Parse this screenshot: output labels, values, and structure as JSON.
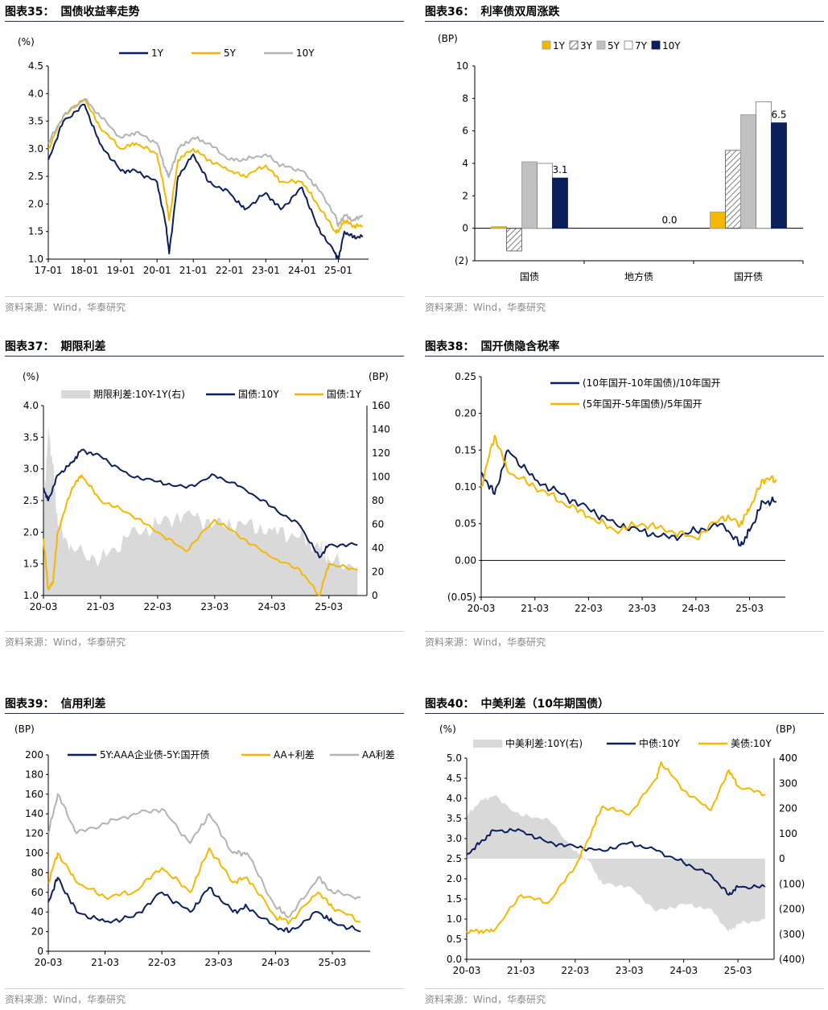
{
  "colors": {
    "navy": "#0b1f5c",
    "gold": "#f5b800",
    "gray": "#b3b3b3",
    "area": "#d9d9d9",
    "title_rule": "#1f2d5a"
  },
  "panels": [
    {
      "title_num": "图表35：",
      "title_text": "国债收益率走势",
      "source": "资料来源：Wind，华泰研究",
      "chart_data": {
        "type": "line",
        "unit": "(%)",
        "x_ticks": [
          "17-01",
          "18-01",
          "19-01",
          "20-01",
          "21-01",
          "22-01",
          "23-01",
          "24-01",
          "25-01"
        ],
        "ylim": [
          1.0,
          4.5
        ],
        "y_ticks": [
          "4.5",
          "4.0",
          "3.5",
          "3.0",
          "2.5",
          "2.0",
          "1.5",
          "1.0"
        ],
        "legend": [
          "1Y",
          "5Y",
          "10Y"
        ],
        "legend_position": "top",
        "series": [
          {
            "name": "1Y",
            "color": "navy",
            "x": [
              "17-01",
              "17-06",
              "18-01",
              "18-06",
              "19-01",
              "19-06",
              "20-01",
              "20-04",
              "20-05",
              "20-08",
              "21-01",
              "21-06",
              "22-01",
              "22-06",
              "23-01",
              "23-06",
              "24-01",
              "24-06",
              "24-12",
              "25-01",
              "25-03",
              "25-06",
              "25-09"
            ],
            "values": [
              2.8,
              3.5,
              3.8,
              3.1,
              2.6,
              2.6,
              2.4,
              1.6,
              1.1,
              2.5,
              2.9,
              2.4,
              2.2,
              1.9,
              2.2,
              1.9,
              2.3,
              1.6,
              1.1,
              1.0,
              1.5,
              1.4,
              1.4
            ]
          },
          {
            "name": "5Y",
            "color": "gold",
            "x": [
              "17-01",
              "17-06",
              "18-01",
              "18-06",
              "19-01",
              "19-06",
              "20-01",
              "20-04",
              "20-05",
              "20-08",
              "21-01",
              "21-06",
              "22-01",
              "22-06",
              "23-01",
              "23-06",
              "24-01",
              "24-06",
              "24-12",
              "25-01",
              "25-03",
              "25-06",
              "25-09"
            ],
            "values": [
              3.0,
              3.6,
              3.9,
              3.4,
              3.0,
              3.1,
              2.9,
              2.1,
              1.7,
              2.8,
              3.0,
              2.8,
              2.6,
              2.5,
              2.7,
              2.4,
              2.4,
              2.0,
              1.5,
              1.5,
              1.7,
              1.6,
              1.6
            ]
          },
          {
            "name": "10Y",
            "color": "gray",
            "x": [
              "17-01",
              "17-06",
              "18-01",
              "18-06",
              "19-01",
              "19-06",
              "20-01",
              "20-04",
              "20-05",
              "20-08",
              "21-01",
              "21-06",
              "22-01",
              "22-06",
              "23-01",
              "23-06",
              "24-01",
              "24-06",
              "24-12",
              "25-01",
              "25-03",
              "25-06",
              "25-09"
            ],
            "values": [
              3.1,
              3.6,
              3.9,
              3.6,
              3.2,
              3.3,
              3.1,
              2.6,
              2.5,
              3.0,
              3.2,
              3.1,
              2.8,
              2.8,
              2.9,
              2.7,
              2.6,
              2.3,
              1.8,
              1.6,
              1.8,
              1.7,
              1.8
            ]
          }
        ]
      }
    },
    {
      "title_num": "图表36：",
      "title_text": "利率债双周涨跌",
      "source": "资料来源：Wind，华泰研究",
      "chart_data": {
        "type": "bar",
        "unit": "(BP)",
        "categories": [
          "国债",
          "地方债",
          "国开债"
        ],
        "ylim": [
          -2,
          10
        ],
        "y_ticks": [
          "10",
          "8",
          "6",
          "4",
          "2",
          "0",
          "(2)"
        ],
        "legend": [
          "1Y",
          "3Y",
          "5Y",
          "7Y",
          "10Y"
        ],
        "legend_position": "top",
        "series": [
          {
            "name": "1Y",
            "values": [
              0.1,
              0.0,
              1.0
            ]
          },
          {
            "name": "3Y",
            "values": [
              -1.4,
              0.0,
              4.8
            ]
          },
          {
            "name": "5Y",
            "values": [
              4.1,
              0.0,
              7.0
            ]
          },
          {
            "name": "7Y",
            "values": [
              4.0,
              0.0,
              7.8
            ]
          },
          {
            "name": "10Y",
            "values": [
              3.1,
              0.0,
              6.5
            ]
          }
        ],
        "data_labels": [
          "3.1",
          "0.0",
          "6.5"
        ]
      }
    },
    {
      "title_num": "图表37：",
      "title_text": "期限利差",
      "source": "资料来源：Wind，华泰研究",
      "chart_data": {
        "type": "line",
        "unit_left": "(%)",
        "unit_right": "(BP)",
        "x_ticks": [
          "20-03",
          "21-03",
          "22-03",
          "23-03",
          "24-03",
          "25-03"
        ],
        "ylim": [
          1.0,
          4.0
        ],
        "y_ticks": [
          "4.0",
          "3.5",
          "3.0",
          "2.5",
          "2.0",
          "1.5",
          "1.0"
        ],
        "y2lim": [
          0,
          160
        ],
        "y2_ticks": [
          "160",
          "140",
          "120",
          "100",
          "80",
          "60",
          "40",
          "20",
          "0"
        ],
        "legend": [
          "期限利差:10Y-1Y(右)",
          "国债:10Y",
          "国债:1Y"
        ],
        "legend_position": "top",
        "area": {
          "name": "期限利差:10Y-1Y(右)",
          "x": [
            "20-03",
            "20-04",
            "20-05",
            "20-06",
            "20-09",
            "21-03",
            "21-09",
            "22-03",
            "22-09",
            "23-03",
            "23-09",
            "24-03",
            "24-09",
            "25-01",
            "25-03",
            "25-09"
          ],
          "values": [
            70,
            140,
            110,
            60,
            40,
            30,
            50,
            60,
            70,
            60,
            60,
            55,
            50,
            40,
            30,
            25
          ]
        },
        "series": [
          {
            "name": "国债:10Y",
            "color": "navy",
            "x": [
              "20-03",
              "20-04",
              "20-06",
              "20-09",
              "20-11",
              "21-03",
              "21-09",
              "22-03",
              "22-09",
              "23-03",
              "23-09",
              "24-03",
              "24-09",
              "25-01",
              "25-03",
              "25-09"
            ],
            "values": [
              2.7,
              2.5,
              2.9,
              3.1,
              3.3,
              3.2,
              2.9,
              2.8,
              2.7,
              2.9,
              2.7,
              2.4,
              2.1,
              1.6,
              1.8,
              1.8
            ]
          },
          {
            "name": "国债:1Y",
            "color": "gold",
            "x": [
              "20-03",
              "20-04",
              "20-05",
              "20-06",
              "20-09",
              "20-11",
              "21-03",
              "21-09",
              "22-03",
              "22-09",
              "23-03",
              "23-09",
              "24-03",
              "24-09",
              "25-01",
              "25-03",
              "25-09"
            ],
            "values": [
              1.9,
              1.1,
              1.2,
              2.0,
              2.7,
              2.9,
              2.5,
              2.3,
              2.0,
              1.7,
              2.2,
              1.9,
              1.6,
              1.4,
              1.0,
              1.5,
              1.4
            ]
          }
        ]
      }
    },
    {
      "title_num": "图表38：",
      "title_text": "国开债隐含税率",
      "source": "资料来源：Wind，华泰研究",
      "chart_data": {
        "type": "line",
        "x_ticks": [
          "20-03",
          "21-03",
          "22-03",
          "23-03",
          "24-03",
          "25-03"
        ],
        "ylim": [
          -0.05,
          0.25
        ],
        "y_ticks": [
          "0.25",
          "0.20",
          "0.15",
          "0.10",
          "0.05",
          "0.00",
          "(0.05)"
        ],
        "legend": [
          "(10年国开-10年国债)/10年国开",
          "(5年国开-5年国债)/5年国开"
        ],
        "legend_position": "top",
        "series": [
          {
            "name": "(10年国开-10年国债)/10年国开",
            "color": "navy",
            "x": [
              "20-03",
              "20-06",
              "20-09",
              "21-03",
              "21-09",
              "22-03",
              "22-09",
              "23-03",
              "23-09",
              "24-03",
              "24-09",
              "25-01",
              "25-03",
              "25-06",
              "25-09"
            ],
            "values": [
              0.12,
              0.09,
              0.15,
              0.11,
              0.09,
              0.07,
              0.05,
              0.04,
              0.03,
              0.04,
              0.05,
              0.02,
              0.04,
              0.08,
              0.08
            ]
          },
          {
            "name": "(5年国开-5年国债)/5年国开",
            "color": "gold",
            "x": [
              "20-03",
              "20-06",
              "20-09",
              "21-03",
              "21-09",
              "22-03",
              "22-09",
              "23-03",
              "23-09",
              "24-03",
              "24-09",
              "25-01",
              "25-03",
              "25-06",
              "25-09"
            ],
            "values": [
              0.1,
              0.17,
              0.12,
              0.1,
              0.08,
              0.06,
              0.04,
              0.05,
              0.04,
              0.03,
              0.06,
              0.05,
              0.07,
              0.11,
              0.11
            ]
          }
        ]
      }
    },
    {
      "title_num": "图表39：",
      "title_text": "信用利差",
      "source": "资料来源：Wind，华泰研究",
      "chart_data": {
        "type": "line",
        "unit": "(BP)",
        "x_ticks": [
          "20-03",
          "21-03",
          "22-03",
          "23-03",
          "24-03",
          "25-03"
        ],
        "ylim": [
          0,
          200
        ],
        "y_ticks": [
          "200",
          "180",
          "160",
          "140",
          "120",
          "100",
          "80",
          "60",
          "40",
          "20",
          "0"
        ],
        "legend": [
          "5Y:AAA企业债-5Y:国开债",
          "AA+利差",
          "AA利差"
        ],
        "legend_position": "top",
        "series": [
          {
            "name": "5Y:AAA企业债-5Y:国开债",
            "color": "navy",
            "x": [
              "20-03",
              "20-05",
              "20-09",
              "21-03",
              "21-09",
              "22-03",
              "22-09",
              "23-01",
              "23-06",
              "23-09",
              "24-03",
              "24-06",
              "24-12",
              "25-03",
              "25-09"
            ],
            "values": [
              50,
              75,
              40,
              30,
              35,
              60,
              40,
              65,
              40,
              45,
              25,
              20,
              40,
              30,
              20
            ]
          },
          {
            "name": "AA+利差",
            "color": "gold",
            "x": [
              "20-03",
              "20-05",
              "20-09",
              "21-03",
              "21-09",
              "22-03",
              "22-09",
              "23-01",
              "23-06",
              "23-09",
              "24-03",
              "24-06",
              "24-12",
              "25-03",
              "25-09"
            ],
            "values": [
              70,
              100,
              70,
              55,
              60,
              85,
              60,
              105,
              70,
              75,
              35,
              30,
              60,
              45,
              30
            ]
          },
          {
            "name": "AA利差",
            "color": "gray",
            "x": [
              "20-03",
              "20-05",
              "20-09",
              "21-03",
              "21-09",
              "22-03",
              "22-09",
              "23-01",
              "23-06",
              "23-09",
              "24-03",
              "24-06",
              "24-12",
              "25-03",
              "25-09"
            ],
            "values": [
              120,
              160,
              120,
              130,
              140,
              145,
              110,
              140,
              100,
              100,
              45,
              35,
              75,
              60,
              55
            ]
          }
        ]
      }
    },
    {
      "title_num": "图表40：",
      "title_text": "中美利差（10年期国债）",
      "source": "资料来源：Wind，华泰研究",
      "chart_data": {
        "type": "line",
        "unit_left": "(%)",
        "unit_right": "(BP)",
        "x_ticks": [
          "20-03",
          "21-03",
          "22-03",
          "23-03",
          "24-03",
          "25-03"
        ],
        "ylim": [
          0.0,
          5.0
        ],
        "y_ticks": [
          "5.0",
          "4.5",
          "4.0",
          "3.5",
          "3.0",
          "2.5",
          "2.0",
          "1.5",
          "1.0",
          "0.5",
          "0.0"
        ],
        "y2lim": [
          -400,
          400
        ],
        "y2_ticks": [
          "400",
          "300",
          "200",
          "100",
          "0",
          "(100)",
          "(200)",
          "(300)",
          "(400)"
        ],
        "legend": [
          "中美利差:10Y(右)",
          "中债:10Y",
          "美债:10Y"
        ],
        "legend_position": "top",
        "area": {
          "name": "中美利差:10Y(右)",
          "x": [
            "20-03",
            "20-06",
            "20-09",
            "21-03",
            "21-09",
            "22-03",
            "22-06",
            "22-09",
            "23-03",
            "23-09",
            "24-03",
            "24-09",
            "25-01",
            "25-03",
            "25-09"
          ],
          "values": [
            170,
            230,
            250,
            170,
            160,
            30,
            -10,
            -100,
            -110,
            -210,
            -180,
            -200,
            -290,
            -260,
            -240
          ]
        },
        "series": [
          {
            "name": "中债:10Y",
            "color": "navy",
            "x": [
              "20-03",
              "20-06",
              "20-09",
              "21-03",
              "21-09",
              "22-03",
              "22-09",
              "23-03",
              "23-09",
              "24-03",
              "24-09",
              "25-01",
              "25-03",
              "25-09"
            ],
            "values": [
              2.6,
              2.9,
              3.2,
              3.2,
              2.9,
              2.8,
              2.7,
              2.9,
              2.7,
              2.4,
              2.1,
              1.6,
              1.8,
              1.8
            ]
          },
          {
            "name": "美债:10Y",
            "color": "gold",
            "x": [
              "20-03",
              "20-06",
              "20-09",
              "21-03",
              "21-09",
              "22-03",
              "22-06",
              "22-09",
              "23-03",
              "23-09",
              "23-10",
              "24-03",
              "24-09",
              "25-01",
              "25-03",
              "25-09"
            ],
            "values": [
              0.7,
              0.7,
              0.7,
              1.6,
              1.4,
              2.3,
              3.0,
              3.8,
              3.6,
              4.5,
              4.9,
              4.2,
              3.7,
              4.7,
              4.3,
              4.1
            ]
          }
        ]
      }
    }
  ]
}
